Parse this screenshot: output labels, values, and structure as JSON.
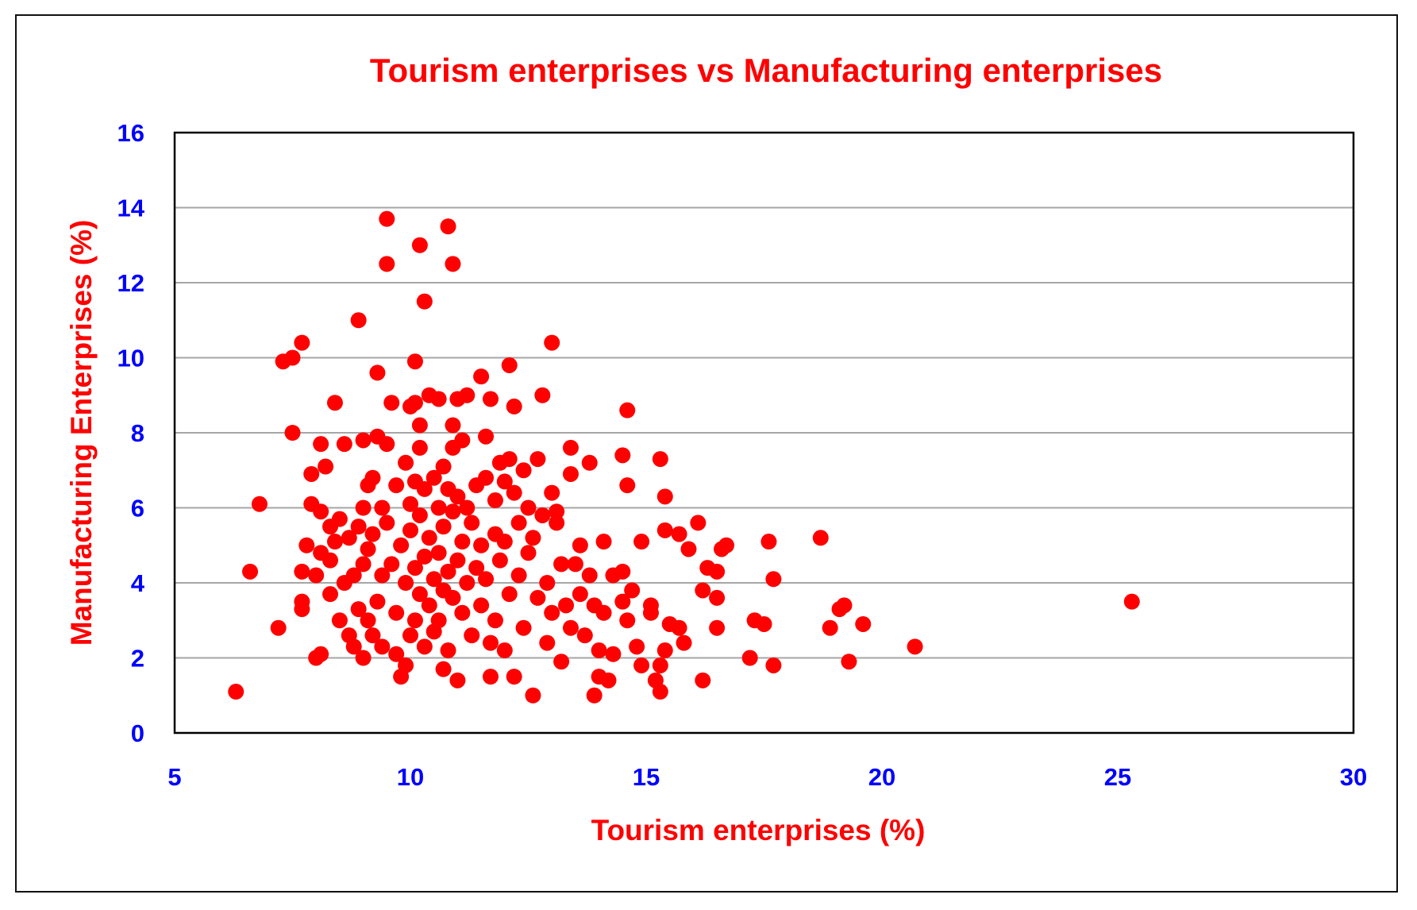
{
  "chart_data": {
    "type": "scatter",
    "title": "Tourism enterprises vs Manufacturing enterprises",
    "xlabel": "Tourism enterprises (%)",
    "ylabel": "Manufacturing Enterprises (%)",
    "xlim": [
      5,
      30
    ],
    "ylim": [
      0,
      16
    ],
    "xticks": [
      "5",
      "10",
      "15",
      "20",
      "25",
      "30"
    ],
    "yticks": [
      "0",
      "2",
      "4",
      "6",
      "8",
      "10",
      "12",
      "14",
      "16"
    ],
    "grid": "horizontal",
    "legend": "none",
    "marker_color": "#ff0000",
    "points": [
      [
        6.3,
        1.1
      ],
      [
        6.6,
        4.3
      ],
      [
        6.8,
        6.1
      ],
      [
        7.2,
        2.8
      ],
      [
        7.3,
        9.9
      ],
      [
        7.5,
        10.0
      ],
      [
        7.5,
        8.0
      ],
      [
        7.7,
        10.4
      ],
      [
        7.7,
        4.3
      ],
      [
        7.7,
        3.5
      ],
      [
        7.7,
        3.3
      ],
      [
        7.8,
        5.0
      ],
      [
        7.9,
        6.9
      ],
      [
        7.9,
        6.1
      ],
      [
        8.0,
        2.0
      ],
      [
        8.0,
        4.2
      ],
      [
        8.1,
        2.1
      ],
      [
        8.1,
        5.9
      ],
      [
        8.1,
        4.8
      ],
      [
        8.1,
        7.7
      ],
      [
        8.2,
        7.1
      ],
      [
        8.3,
        3.7
      ],
      [
        8.3,
        4.6
      ],
      [
        8.3,
        5.5
      ],
      [
        8.4,
        8.8
      ],
      [
        8.4,
        5.1
      ],
      [
        8.5,
        5.7
      ],
      [
        8.5,
        3.0
      ],
      [
        8.6,
        7.7
      ],
      [
        8.6,
        4.0
      ],
      [
        8.7,
        5.2
      ],
      [
        8.7,
        2.6
      ],
      [
        8.8,
        2.3
      ],
      [
        8.8,
        4.2
      ],
      [
        8.9,
        11.0
      ],
      [
        8.9,
        5.5
      ],
      [
        8.9,
        3.3
      ],
      [
        9.0,
        4.5
      ],
      [
        9.0,
        7.8
      ],
      [
        9.0,
        6.0
      ],
      [
        9.0,
        2.0
      ],
      [
        9.1,
        3.0
      ],
      [
        9.1,
        6.6
      ],
      [
        9.1,
        4.9
      ],
      [
        9.2,
        2.6
      ],
      [
        9.2,
        6.8
      ],
      [
        9.2,
        5.3
      ],
      [
        9.3,
        9.6
      ],
      [
        9.3,
        3.5
      ],
      [
        9.3,
        7.9
      ],
      [
        9.4,
        6.0
      ],
      [
        9.4,
        4.2
      ],
      [
        9.4,
        2.3
      ],
      [
        9.5,
        13.7
      ],
      [
        9.5,
        12.5
      ],
      [
        9.5,
        7.7
      ],
      [
        9.5,
        5.6
      ],
      [
        9.6,
        8.8
      ],
      [
        9.6,
        4.5
      ],
      [
        9.7,
        6.6
      ],
      [
        9.7,
        3.2
      ],
      [
        9.7,
        2.1
      ],
      [
        9.8,
        1.5
      ],
      [
        9.8,
        5.0
      ],
      [
        9.9,
        7.2
      ],
      [
        9.9,
        4.0
      ],
      [
        9.9,
        1.8
      ],
      [
        10.0,
        8.7
      ],
      [
        10.0,
        6.1
      ],
      [
        10.0,
        2.6
      ],
      [
        10.0,
        5.4
      ],
      [
        10.1,
        9.9
      ],
      [
        10.1,
        8.8
      ],
      [
        10.1,
        4.4
      ],
      [
        10.1,
        3.0
      ],
      [
        10.1,
        6.7
      ],
      [
        10.2,
        13.0
      ],
      [
        10.2,
        8.2
      ],
      [
        10.2,
        7.6
      ],
      [
        10.2,
        5.8
      ],
      [
        10.2,
        3.7
      ],
      [
        10.3,
        11.5
      ],
      [
        10.3,
        6.5
      ],
      [
        10.3,
        4.7
      ],
      [
        10.3,
        2.3
      ],
      [
        10.4,
        9.0
      ],
      [
        10.4,
        5.2
      ],
      [
        10.4,
        3.4
      ],
      [
        10.5,
        6.8
      ],
      [
        10.5,
        4.1
      ],
      [
        10.5,
        2.7
      ],
      [
        10.6,
        8.9
      ],
      [
        10.6,
        6.0
      ],
      [
        10.6,
        4.8
      ],
      [
        10.6,
        3.0
      ],
      [
        10.7,
        7.1
      ],
      [
        10.7,
        5.5
      ],
      [
        10.7,
        3.8
      ],
      [
        10.7,
        1.7
      ],
      [
        10.8,
        13.5
      ],
      [
        10.8,
        6.5
      ],
      [
        10.8,
        4.3
      ],
      [
        10.8,
        2.2
      ],
      [
        10.9,
        12.5
      ],
      [
        10.9,
        8.2
      ],
      [
        10.9,
        7.6
      ],
      [
        10.9,
        5.9
      ],
      [
        10.9,
        3.6
      ],
      [
        11.0,
        8.9
      ],
      [
        11.0,
        6.3
      ],
      [
        11.0,
        4.6
      ],
      [
        11.0,
        1.4
      ],
      [
        11.1,
        7.8
      ],
      [
        11.1,
        5.1
      ],
      [
        11.1,
        3.2
      ],
      [
        11.2,
        9.0
      ],
      [
        11.2,
        6.0
      ],
      [
        11.2,
        4.0
      ],
      [
        11.3,
        2.6
      ],
      [
        11.3,
        5.6
      ],
      [
        11.4,
        6.6
      ],
      [
        11.4,
        4.4
      ],
      [
        11.5,
        9.5
      ],
      [
        11.5,
        3.4
      ],
      [
        11.5,
        5.0
      ],
      [
        11.6,
        7.9
      ],
      [
        11.6,
        6.8
      ],
      [
        11.6,
        4.1
      ],
      [
        11.7,
        8.9
      ],
      [
        11.7,
        1.5
      ],
      [
        11.7,
        2.4
      ],
      [
        11.8,
        6.2
      ],
      [
        11.8,
        5.3
      ],
      [
        11.8,
        3.0
      ],
      [
        11.9,
        7.2
      ],
      [
        11.9,
        4.6
      ],
      [
        12.0,
        6.7
      ],
      [
        12.0,
        2.2
      ],
      [
        12.0,
        5.1
      ],
      [
        12.1,
        9.8
      ],
      [
        12.1,
        7.3
      ],
      [
        12.1,
        3.7
      ],
      [
        12.2,
        8.7
      ],
      [
        12.2,
        6.4
      ],
      [
        12.2,
        1.5
      ],
      [
        12.3,
        5.6
      ],
      [
        12.3,
        4.2
      ],
      [
        12.4,
        7.0
      ],
      [
        12.4,
        2.8
      ],
      [
        12.5,
        6.0
      ],
      [
        12.5,
        4.8
      ],
      [
        12.6,
        1.0
      ],
      [
        12.6,
        5.2
      ],
      [
        12.7,
        7.3
      ],
      [
        12.7,
        3.6
      ],
      [
        12.8,
        9.0
      ],
      [
        12.8,
        5.8
      ],
      [
        12.9,
        4.0
      ],
      [
        12.9,
        2.4
      ],
      [
        13.0,
        10.4
      ],
      [
        13.0,
        6.4
      ],
      [
        13.0,
        3.2
      ],
      [
        13.1,
        5.9
      ],
      [
        13.1,
        5.6
      ],
      [
        13.2,
        4.5
      ],
      [
        13.2,
        1.9
      ],
      [
        13.3,
        3.4
      ],
      [
        13.4,
        7.6
      ],
      [
        13.4,
        6.9
      ],
      [
        13.4,
        2.8
      ],
      [
        13.5,
        4.5
      ],
      [
        13.6,
        5.0
      ],
      [
        13.6,
        3.7
      ],
      [
        13.7,
        2.6
      ],
      [
        13.8,
        7.2
      ],
      [
        13.8,
        4.2
      ],
      [
        13.9,
        3.4
      ],
      [
        13.9,
        1.0
      ],
      [
        14.0,
        1.5
      ],
      [
        14.0,
        2.2
      ],
      [
        14.1,
        5.1
      ],
      [
        14.1,
        3.2
      ],
      [
        14.2,
        1.4
      ],
      [
        14.3,
        4.2
      ],
      [
        14.3,
        2.1
      ],
      [
        14.5,
        7.4
      ],
      [
        14.5,
        4.3
      ],
      [
        14.5,
        3.5
      ],
      [
        14.6,
        8.6
      ],
      [
        14.6,
        6.6
      ],
      [
        14.6,
        3.0
      ],
      [
        14.7,
        3.8
      ],
      [
        14.8,
        2.3
      ],
      [
        14.9,
        5.1
      ],
      [
        14.9,
        1.8
      ],
      [
        15.1,
        3.4
      ],
      [
        15.1,
        3.2
      ],
      [
        15.2,
        1.4
      ],
      [
        15.3,
        7.3
      ],
      [
        15.3,
        1.1
      ],
      [
        15.3,
        1.8
      ],
      [
        15.4,
        6.3
      ],
      [
        15.4,
        5.4
      ],
      [
        15.4,
        2.2
      ],
      [
        15.5,
        2.9
      ],
      [
        15.7,
        5.3
      ],
      [
        15.7,
        2.8
      ],
      [
        15.8,
        2.4
      ],
      [
        15.9,
        4.9
      ],
      [
        16.1,
        5.6
      ],
      [
        16.2,
        3.8
      ],
      [
        16.2,
        1.4
      ],
      [
        16.3,
        4.4
      ],
      [
        16.5,
        4.3
      ],
      [
        16.5,
        2.8
      ],
      [
        16.5,
        3.6
      ],
      [
        16.6,
        4.9
      ],
      [
        16.7,
        5.0
      ],
      [
        17.2,
        2.0
      ],
      [
        17.3,
        3.0
      ],
      [
        17.5,
        2.9
      ],
      [
        17.6,
        5.1
      ],
      [
        17.7,
        4.1
      ],
      [
        17.7,
        1.8
      ],
      [
        18.7,
        5.2
      ],
      [
        18.9,
        2.8
      ],
      [
        19.1,
        3.3
      ],
      [
        19.2,
        3.4
      ],
      [
        19.3,
        1.9
      ],
      [
        19.6,
        2.9
      ],
      [
        20.7,
        2.3
      ],
      [
        25.3,
        3.5
      ]
    ]
  }
}
